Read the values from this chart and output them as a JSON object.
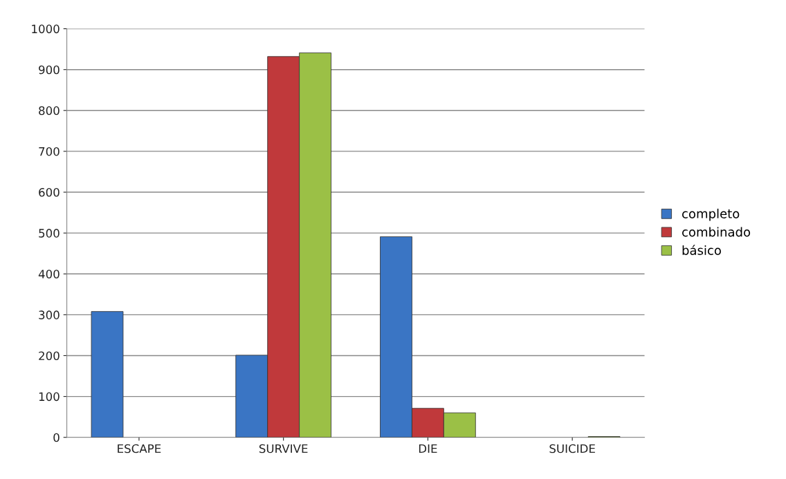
{
  "chart_data": {
    "type": "bar",
    "categories": [
      "ESCAPE",
      "SURVIVE",
      "DIE",
      "SUICIDE"
    ],
    "series": [
      {
        "name": "completo",
        "color": "#3a75c4",
        "values": [
          308,
          201,
          491,
          null
        ]
      },
      {
        "name": "combinado",
        "color": "#c0393b",
        "values": [
          null,
          932,
          71,
          null
        ]
      },
      {
        "name": "básico",
        "color": "#9bc046",
        "values": [
          null,
          941,
          60,
          2
        ]
      }
    ],
    "ylim": [
      0,
      1000
    ],
    "yticks": [
      0,
      100,
      200,
      300,
      400,
      500,
      600,
      700,
      800,
      900,
      1000
    ],
    "grid": "y",
    "legend": "right"
  }
}
